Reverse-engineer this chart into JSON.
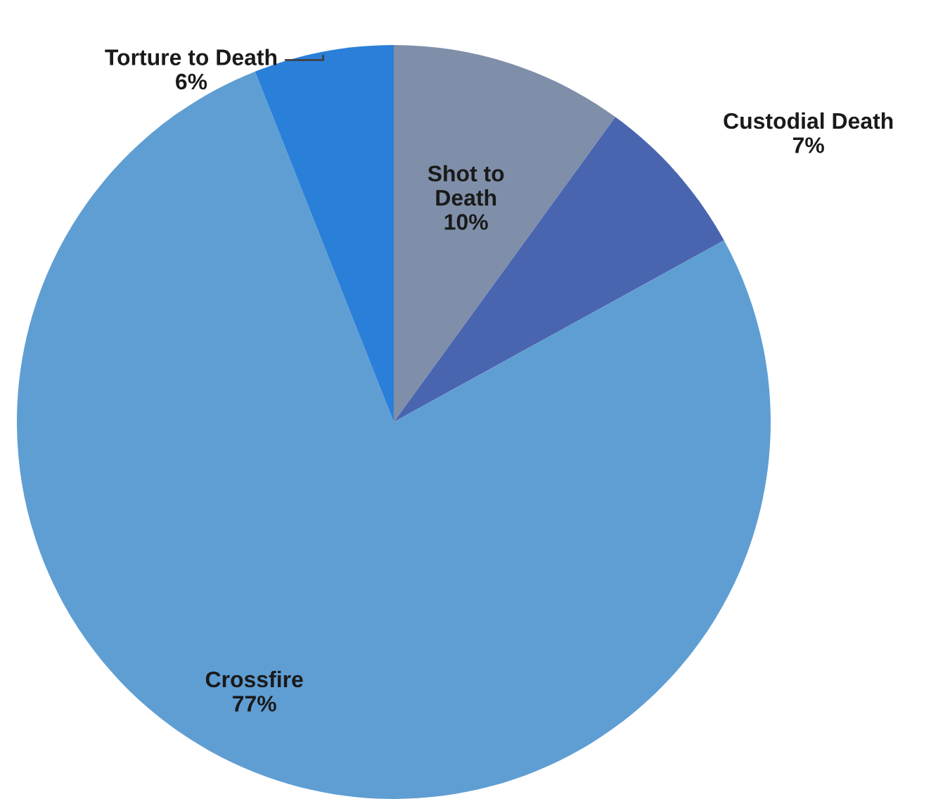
{
  "chart_data": {
    "type": "pie",
    "categories": [
      "Shot to Death",
      "Custodial Death",
      "Crossfire",
      "Torture to Death"
    ],
    "values": [
      10,
      7,
      77,
      6
    ],
    "colors": [
      "#7f8fa9",
      "#4a65b0",
      "#5f9ed3",
      "#2a7fd8"
    ],
    "value_labels": [
      "10%",
      "7%",
      "77%",
      "6%"
    ],
    "legend": false
  }
}
